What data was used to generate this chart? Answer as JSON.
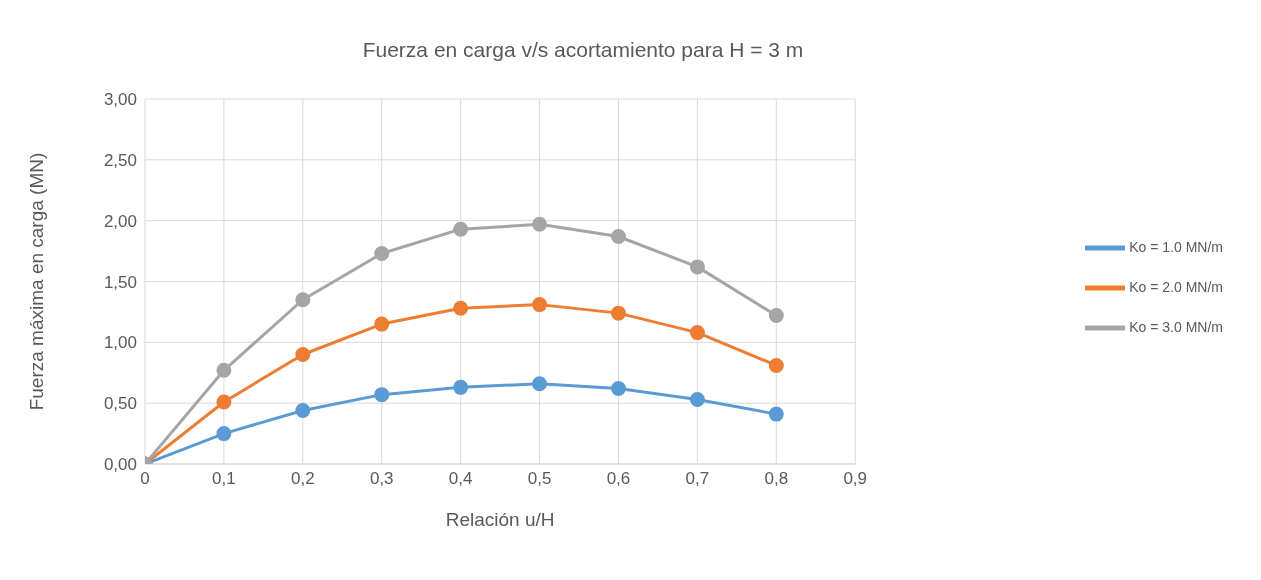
{
  "chart_data": {
    "type": "line",
    "title": "Fuerza en carga v/s acortamiento para H = 3 m",
    "xlabel": "Relación u/H",
    "ylabel": "Fuerza máxima en carga (MN)",
    "x": [
      0,
      0.1,
      0.2,
      0.3,
      0.4,
      0.5,
      0.6,
      0.7,
      0.8
    ],
    "series": [
      {
        "name": "Ko = 1.0 MN/m",
        "color": "#5b9bd5",
        "values": [
          0,
          0.25,
          0.44,
          0.57,
          0.63,
          0.66,
          0.62,
          0.53,
          0.41
        ]
      },
      {
        "name": "Ko = 2.0 MN/m",
        "color": "#ed7d31",
        "values": [
          0,
          0.51,
          0.9,
          1.15,
          1.28,
          1.31,
          1.24,
          1.08,
          0.81
        ]
      },
      {
        "name": "Ko = 3.0 MN/m",
        "color": "#a5a5a5",
        "values": [
          0,
          0.77,
          1.35,
          1.73,
          1.93,
          1.97,
          1.87,
          1.62,
          1.22
        ]
      }
    ],
    "xlim": [
      0,
      0.9
    ],
    "xticks": [
      0,
      {
        "value": 0.1,
        "label": "0,1"
      },
      {
        "value": 0.2,
        "label": "0,2"
      },
      {
        "value": 0.3,
        "label": "0,3"
      },
      {
        "value": 0.4,
        "label": "0,4"
      },
      {
        "value": 0.5,
        "label": "0,5"
      },
      {
        "value": 0.6,
        "label": "0,6"
      },
      {
        "value": 0.7,
        "label": "0,7"
      },
      {
        "value": 0.8,
        "label": "0,8"
      },
      {
        "value": 0.9,
        "label": "0,9"
      }
    ],
    "ylim": [
      0,
      3
    ],
    "yticks": [
      {
        "value": 0,
        "label": "0,00"
      },
      {
        "value": 0.5,
        "label": "0,50"
      },
      {
        "value": 1,
        "label": "1,00"
      },
      {
        "value": 1.5,
        "label": "1,50"
      },
      {
        "value": 2,
        "label": "2,00"
      },
      {
        "value": 2.5,
        "label": "2,50"
      },
      {
        "value": 3,
        "label": "3,00"
      }
    ],
    "grid": true,
    "legend": "right",
    "marker": "circle",
    "line_style": "solid"
  }
}
